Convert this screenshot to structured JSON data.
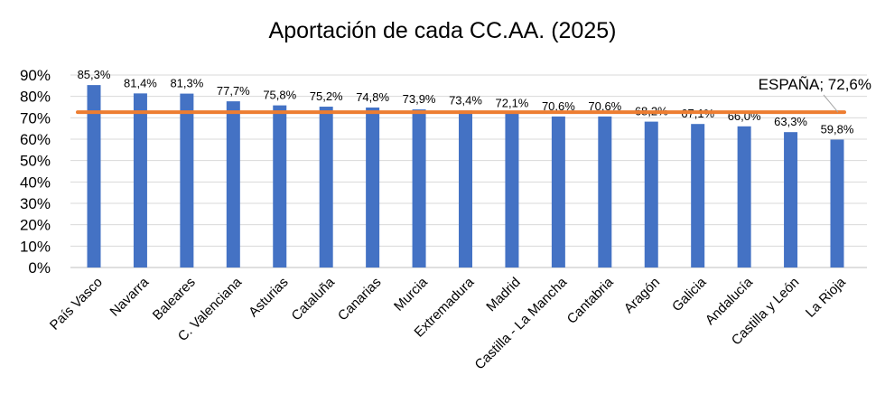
{
  "chart_data": {
    "type": "bar",
    "title": "Aportación de cada CC.AA. (2025)",
    "xlabel": "",
    "ylabel": "",
    "ylim": [
      0,
      90
    ],
    "yticks": [
      "0%",
      "10%",
      "20%",
      "30%",
      "40%",
      "50%",
      "60%",
      "70%",
      "80%",
      "90%"
    ],
    "grid": true,
    "bar_color": "#4472C4",
    "categories": [
      "País Vasco",
      "Navarra",
      "Baleares",
      "C. Valenciana",
      "Asturias",
      "Cataluña",
      "Canarias",
      "Murcia",
      "Extremadura",
      "Madrid",
      "Castilla - La Mancha",
      "Cantabria",
      "Aragón",
      "Galicia",
      "Andalucía",
      "Castilla y León",
      "La Rioja"
    ],
    "values": [
      85.3,
      81.4,
      81.3,
      77.7,
      75.8,
      75.2,
      74.8,
      73.9,
      73.4,
      72.1,
      70.6,
      70.6,
      68.2,
      67.1,
      66.0,
      63.3,
      59.8
    ],
    "value_labels": [
      "85,3%",
      "81,4%",
      "81,3%",
      "77,7%",
      "75,8%",
      "75,2%",
      "74,8%",
      "73,9%",
      "73,4%",
      "72,1%",
      "70,6%",
      "70,6%",
      "68,2%",
      "67,1%",
      "66,0%",
      "63,3%",
      "59,8%"
    ],
    "reference_line": {
      "value": 72.6,
      "label": "ESPAÑA; 72,6%",
      "color": "#ED7D31"
    }
  }
}
